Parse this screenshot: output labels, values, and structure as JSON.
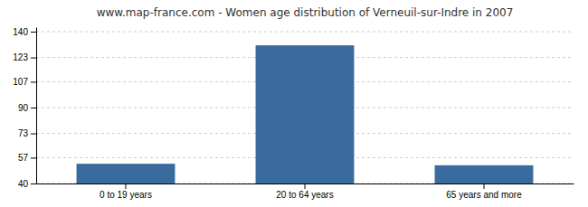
{
  "chart_data": {
    "type": "bar",
    "title": "www.map-france.com - Women age distribution of Verneuil-sur-Indre in 2007",
    "categories": [
      "0 to 19 years",
      "20 to 64 years",
      "65 years and more"
    ],
    "values": [
      53,
      131,
      52
    ],
    "color": "#3a6b9e",
    "ylim": [
      40,
      143
    ],
    "yticks": [
      40,
      57,
      73,
      90,
      107,
      123,
      140
    ],
    "grid": true
  }
}
